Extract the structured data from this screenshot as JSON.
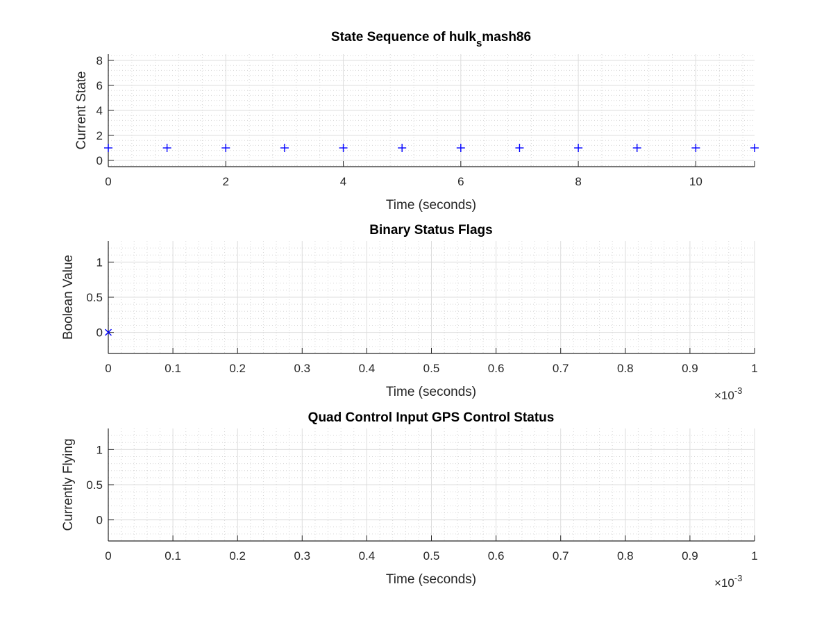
{
  "chart_data": [
    {
      "type": "scatter",
      "title_main": "State Sequence of hulk",
      "title_sub": "s",
      "title_tail": "mash86",
      "xlabel": "Time (seconds)",
      "ylabel": "Current State",
      "xlim": [
        0,
        11
      ],
      "ylim": [
        -0.5,
        8.5
      ],
      "xticks": [
        "0",
        "2",
        "4",
        "6",
        "8",
        "10"
      ],
      "yticks": [
        "0",
        "2",
        "4",
        "6",
        "8"
      ],
      "x_exponent": "",
      "grid": true,
      "minor_grid": true,
      "marker": "+",
      "color": "#0000ff",
      "series": [
        {
          "x": [
            0,
            1,
            2,
            3,
            4,
            5,
            6,
            7,
            8,
            9,
            10,
            11
          ],
          "y": [
            1,
            1,
            1,
            1,
            1,
            1,
            1,
            1,
            1,
            1,
            1,
            1
          ]
        }
      ]
    },
    {
      "type": "scatter",
      "title_main": "Binary Status Flags",
      "title_sub": "",
      "title_tail": "",
      "xlabel": "Time (seconds)",
      "ylabel": "Boolean Value",
      "xlim": [
        0,
        0.001
      ],
      "ylim": [
        -0.3,
        1.3
      ],
      "xticks": [
        "0",
        "0.1",
        "0.2",
        "0.3",
        "0.4",
        "0.5",
        "0.6",
        "0.7",
        "0.8",
        "0.9",
        "1"
      ],
      "yticks": [
        "0",
        "0.5",
        "1"
      ],
      "x_exponent": "-3",
      "grid": true,
      "minor_grid": true,
      "marker": "x",
      "color": "#0000ff",
      "series": [
        {
          "x": [
            0
          ],
          "y": [
            0
          ]
        }
      ]
    },
    {
      "type": "scatter",
      "title_main": "Quad Control Input GPS Control Status",
      "title_sub": "",
      "title_tail": "",
      "xlabel": "Time (seconds)",
      "ylabel": "Currently Flying",
      "xlim": [
        0,
        0.001
      ],
      "ylim": [
        -0.3,
        1.3
      ],
      "xticks": [
        "0",
        "0.1",
        "0.2",
        "0.3",
        "0.4",
        "0.5",
        "0.6",
        "0.7",
        "0.8",
        "0.9",
        "1"
      ],
      "yticks": [
        "0",
        "0.5",
        "1"
      ],
      "x_exponent": "-3",
      "grid": true,
      "minor_grid": true,
      "marker": "x",
      "color": "#0000ff",
      "series": []
    }
  ]
}
